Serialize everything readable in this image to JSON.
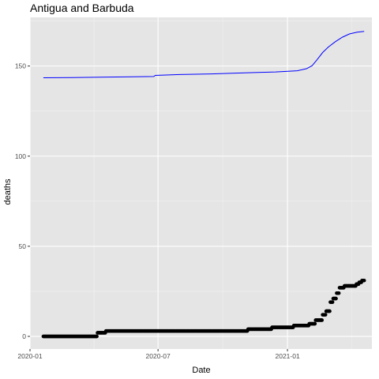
{
  "chart_data": {
    "type": "scatter",
    "title": "Antigua and Barbuda",
    "xlabel": "Date",
    "ylabel": "deaths",
    "x_ticks": [
      "2020-01-01",
      "2020-07-01",
      "2021-01-01"
    ],
    "x_tick_labels": [
      "2020-01",
      "2020-07",
      "2021-01"
    ],
    "y_ticks": [
      0,
      50,
      100,
      150
    ],
    "y_tick_labels": [
      "0",
      "50",
      "100",
      "150"
    ],
    "xlim": [
      "2020-01-01",
      "2021-05-01"
    ],
    "ylim": [
      -7,
      177
    ],
    "grid": true,
    "legend": "none",
    "colors": {
      "panel": "#e5e5e5",
      "grid_major": "#ffffff",
      "points": "#000000",
      "line": "#0000ff"
    },
    "series": [
      {
        "kind": "points",
        "style": "step",
        "data": [
          [
            "2020-01-20",
            0
          ],
          [
            "2020-04-05",
            0
          ],
          [
            "2020-04-06",
            2
          ],
          [
            "2020-04-18",
            3
          ],
          [
            "2020-11-05",
            3
          ],
          [
            "2020-11-06",
            4
          ],
          [
            "2020-12-10",
            5
          ],
          [
            "2021-01-10",
            6
          ],
          [
            "2021-02-01",
            7
          ],
          [
            "2021-02-10",
            9
          ],
          [
            "2021-02-20",
            12
          ],
          [
            "2021-02-25",
            14
          ],
          [
            "2021-03-03",
            19
          ],
          [
            "2021-03-07",
            21
          ],
          [
            "2021-03-12",
            24
          ],
          [
            "2021-03-16",
            27
          ],
          [
            "2021-03-23",
            28
          ],
          [
            "2021-04-09",
            29
          ],
          [
            "2021-04-13",
            30
          ],
          [
            "2021-04-17",
            31
          ],
          [
            "2021-04-20",
            31
          ]
        ]
      },
      {
        "kind": "line",
        "data": [
          [
            "2020-01-20",
            143.5
          ],
          [
            "2020-03-01",
            143.6
          ],
          [
            "2020-04-10",
            143.8
          ],
          [
            "2020-05-15",
            144.0
          ],
          [
            "2020-06-25",
            144.2
          ],
          [
            "2020-06-27",
            144.8
          ],
          [
            "2020-08-01",
            145.3
          ],
          [
            "2020-09-15",
            145.6
          ],
          [
            "2020-10-15",
            146.0
          ],
          [
            "2020-11-15",
            146.4
          ],
          [
            "2020-12-15",
            146.7
          ],
          [
            "2021-01-15",
            147.4
          ],
          [
            "2021-01-28",
            148.5
          ],
          [
            "2021-02-05",
            150.2
          ],
          [
            "2021-02-12",
            153.5
          ],
          [
            "2021-02-20",
            157.5
          ],
          [
            "2021-02-28",
            160.5
          ],
          [
            "2021-03-10",
            163.5
          ],
          [
            "2021-03-20",
            166.0
          ],
          [
            "2021-03-30",
            167.8
          ],
          [
            "2021-04-10",
            168.8
          ],
          [
            "2021-04-20",
            169.2
          ]
        ]
      }
    ]
  }
}
